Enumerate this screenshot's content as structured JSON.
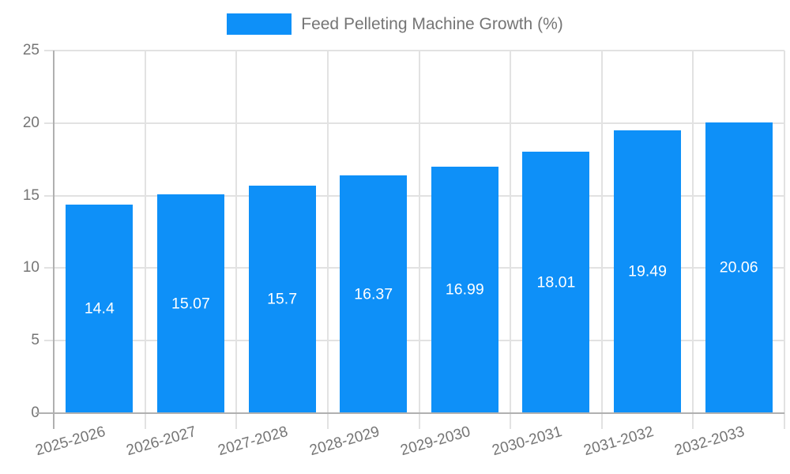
{
  "legend": {
    "label": "Feed Pelleting Machine Growth (%)"
  },
  "colors": {
    "bar": "#0e90f8",
    "grid": "#e2e2e2",
    "axis": "#b0b0b0",
    "tick_text": "#757575",
    "bar_label": "#ffffff",
    "background": "#ffffff"
  },
  "chart_data": {
    "type": "bar",
    "title": "Feed Pelleting Machine Growth (%)",
    "categories": [
      "2025-2026",
      "2026-2027",
      "2027-2028",
      "2028-2029",
      "2029-2030",
      "2030-2031",
      "2031-2032",
      "2032-2033"
    ],
    "values": [
      14.4,
      15.07,
      15.7,
      16.37,
      16.99,
      18.01,
      19.49,
      20.06
    ],
    "value_labels": [
      "14.4",
      "15.07",
      "15.7",
      "16.37",
      "16.99",
      "18.01",
      "19.49",
      "20.06"
    ],
    "xlabel": "",
    "ylabel": "",
    "ylim": [
      0,
      25
    ],
    "yticks": [
      0,
      5,
      10,
      15,
      20,
      25
    ],
    "grid": true,
    "legend_position": "top",
    "value_label_position": "inside-center",
    "x_tick_rotation_deg": -16
  }
}
